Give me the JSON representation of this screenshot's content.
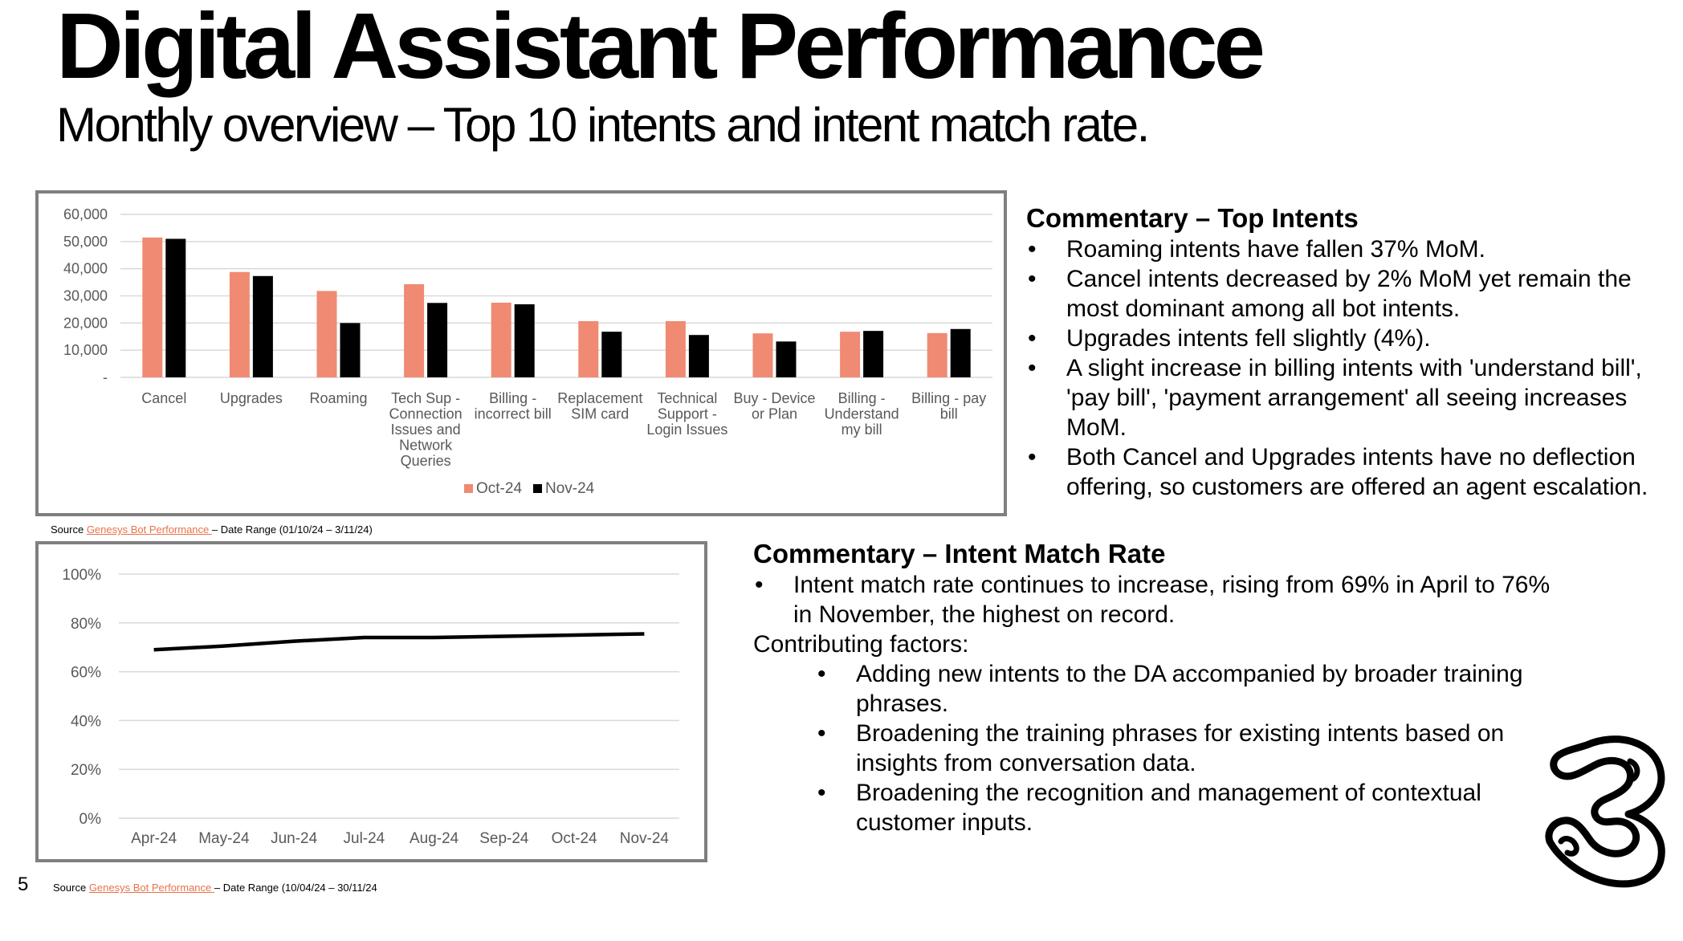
{
  "header": {
    "title": "Digital Assistant Performance",
    "subtitle": "Monthly overview – Top 10 intents and intent match rate."
  },
  "colors": {
    "oct": "#f08a73",
    "nov": "#000000",
    "line": "#000000",
    "grid": "#d9d9d9",
    "link": "#e8734a"
  },
  "chart_data": [
    {
      "type": "bar",
      "title": "",
      "categories": [
        [
          "Cancel"
        ],
        [
          "Upgrades"
        ],
        [
          "Roaming"
        ],
        [
          "Tech Sup -",
          "Connection",
          "Issues and",
          "Network",
          "Queries"
        ],
        [
          "Billing -",
          "incorrect bill"
        ],
        [
          "Replacement",
          "SIM card"
        ],
        [
          "Technical",
          "Support -",
          "Login Issues"
        ],
        [
          "Buy - Device",
          "or Plan"
        ],
        [
          "Billing -",
          "Understand",
          "my bill"
        ],
        [
          "Billing - pay",
          "bill"
        ]
      ],
      "series": [
        {
          "name": "Oct-24",
          "values": [
            51500,
            38800,
            31800,
            34300,
            27500,
            20700,
            20700,
            16200,
            16800,
            16300
          ]
        },
        {
          "name": "Nov-24",
          "values": [
            51000,
            37300,
            20000,
            27400,
            26900,
            16800,
            15600,
            13200,
            17100,
            17800
          ]
        }
      ],
      "yticks": [
        "-",
        "10,000",
        "20,000",
        "30,000",
        "40,000",
        "50,000",
        "60,000"
      ],
      "ylim": [
        0,
        60000
      ],
      "legend": "bottom"
    },
    {
      "type": "line",
      "title": "",
      "x": [
        "Apr-24",
        "May-24",
        "Jun-24",
        "Jul-24",
        "Aug-24",
        "Sep-24",
        "Oct-24",
        "Nov-24"
      ],
      "series": [
        {
          "name": "Intent match rate",
          "values": [
            69,
            70.5,
            72.5,
            74,
            74,
            74.5,
            75,
            75.5
          ]
        }
      ],
      "yticks": [
        "0%",
        "20%",
        "40%",
        "60%",
        "80%",
        "100%"
      ],
      "ylim": [
        0,
        100
      ]
    }
  ],
  "sources": {
    "s1": {
      "prefix": "Source ",
      "link": "Genesys Bot Performance ",
      "suffix": "– Date Range (01/10/24 – 3/11/24)"
    },
    "s2": {
      "prefix": "Source ",
      "link": "Genesys Bot Performance ",
      "suffix": "– Date Range (10/04/24 – 30/11/24"
    }
  },
  "page_number": "5",
  "commentary_top": {
    "heading": "Commentary – Top Intents",
    "bullets": [
      "Roaming intents have fallen 37% MoM.",
      "Cancel intents decreased by 2% MoM yet remain the most dominant among all bot intents.",
      "Upgrades intents fell slightly (4%).",
      "A slight increase in billing intents with 'understand bill', 'pay bill', 'payment arrangement' all seeing increases MoM.",
      "Both Cancel and Upgrades intents have no deflection offering, so customers are offered an agent escalation."
    ]
  },
  "commentary_imr": {
    "heading": "Commentary – Intent Match Rate",
    "bullet": "Intent match rate continues to increase, rising from 69% in April to 76% in November, the highest on record.",
    "factors_label": "Contributing factors:",
    "factors": [
      "Adding new intents to the DA accompanied by broader training phrases.",
      "Broadening the training phrases for existing intents based on insights from conversation data.",
      "Broadening the recognition and management of contextual customer inputs."
    ]
  }
}
